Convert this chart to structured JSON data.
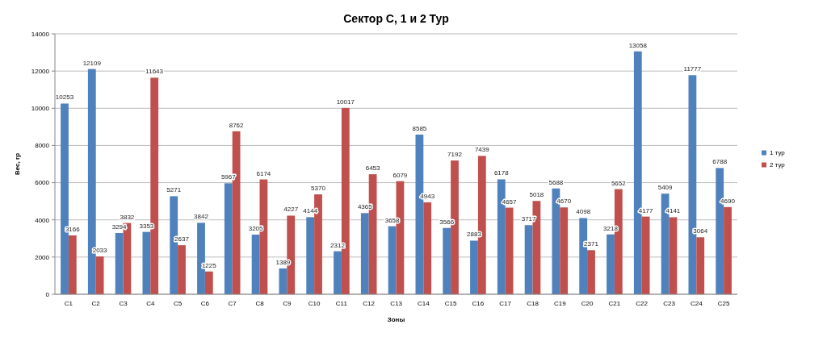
{
  "chart_data": {
    "type": "bar",
    "title": "Сектор С, 1 и 2 Тур",
    "xlabel": "Зоны",
    "ylabel": "Вес, гр",
    "categories": [
      "C1",
      "C2",
      "C3",
      "C4",
      "C5",
      "C6",
      "C7",
      "C8",
      "C9",
      "C10",
      "C11",
      "C12",
      "C13",
      "C14",
      "C15",
      "C16",
      "C17",
      "C18",
      "C19",
      "C20",
      "C21",
      "C22",
      "C23",
      "C24",
      "C25"
    ],
    "series": [
      {
        "name": "1 тур",
        "color": "#4f81bd",
        "values": [
          10253,
          12109,
          3294,
          3353,
          5271,
          3842,
          5967,
          3205,
          1389,
          4144,
          2312,
          4365,
          3658,
          8585,
          3566,
          2883,
          6178,
          3717,
          5688,
          4098,
          3218,
          13058,
          5409,
          11777,
          6788
        ]
      },
      {
        "name": "2 тур",
        "color": "#c0504d",
        "values": [
          3166,
          2033,
          3832,
          11643,
          2637,
          1225,
          8762,
          6174,
          4227,
          5370,
          10017,
          6453,
          6079,
          4943,
          7192,
          7439,
          4657,
          5018,
          4670,
          2371,
          5652,
          4177,
          4141,
          3064,
          4690
        ]
      }
    ],
    "ylim": [
      0,
      14000
    ],
    "yticks": [
      0,
      2000,
      4000,
      6000,
      8000,
      10000,
      12000,
      14000
    ],
    "grid": "y",
    "legend": "right",
    "data_labels": true
  }
}
